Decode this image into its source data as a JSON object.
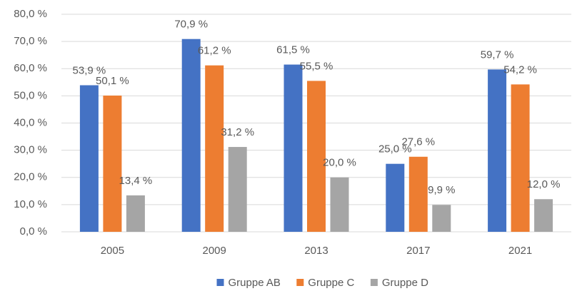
{
  "chart_data": {
    "type": "bar",
    "categories": [
      "2005",
      "2009",
      "2013",
      "2017",
      "2021"
    ],
    "series": [
      {
        "name": "Gruppe AB",
        "color": "#4472c4",
        "values": [
          53.9,
          70.9,
          61.5,
          25.0,
          59.7
        ],
        "value_labels": [
          "53,9 %",
          "70,9 %",
          "61,5 %",
          "25,0 %",
          "59,7 %"
        ]
      },
      {
        "name": "Gruppe C",
        "color": "#ed7d31",
        "values": [
          50.1,
          61.2,
          55.5,
          27.6,
          54.2
        ],
        "value_labels": [
          "50,1 %",
          "61,2 %",
          "55,5 %",
          "27,6 %",
          "54,2 %"
        ]
      },
      {
        "name": "Gruppe D",
        "color": "#a5a5a5",
        "values": [
          13.4,
          31.2,
          20.0,
          9.9,
          12.0
        ],
        "value_labels": [
          "13,4 %",
          "31,2 %",
          "20,0 %",
          "9,9 %",
          "12,0 %"
        ]
      }
    ],
    "ylim": [
      0,
      80
    ],
    "yticks": [
      {
        "value": 0,
        "label": "0,0 %"
      },
      {
        "value": 10,
        "label": "10,0 %"
      },
      {
        "value": 20,
        "label": "20,0 %"
      },
      {
        "value": 30,
        "label": "30,0 %"
      },
      {
        "value": 40,
        "label": "40,0 %"
      },
      {
        "value": 50,
        "label": "50,0 %"
      },
      {
        "value": 60,
        "label": "60,0 %"
      },
      {
        "value": 70,
        "label": "70,0 %"
      },
      {
        "value": 80,
        "label": "80,0 %"
      }
    ],
    "grid": true,
    "legend": "bottom"
  }
}
